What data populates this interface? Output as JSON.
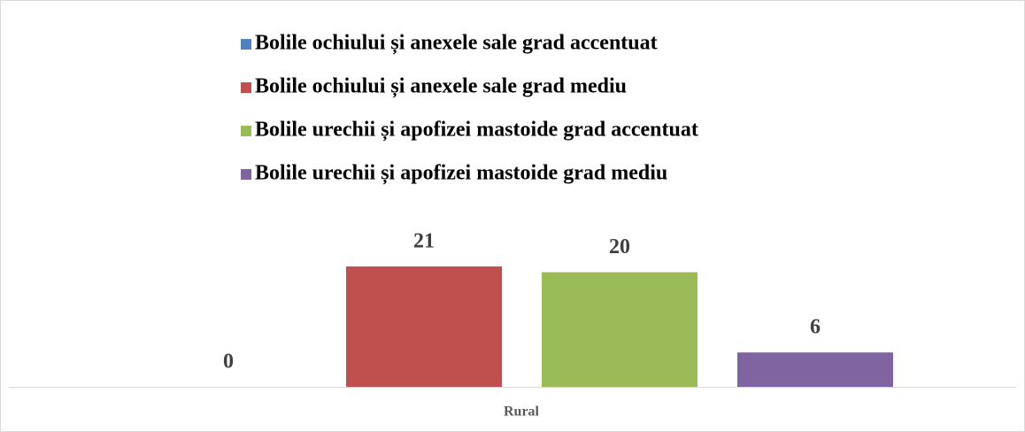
{
  "chart_data": {
    "type": "bar",
    "categories": [
      "Rural"
    ],
    "series": [
      {
        "name": "Bolile ochiului și anexele sale grad accentuat",
        "color": "#4f81bd",
        "values": [
          0
        ]
      },
      {
        "name": "Bolile ochiului și anexele sale grad mediu",
        "color": "#c0504d",
        "values": [
          21
        ]
      },
      {
        "name": "Bolile urechii și apofizei mastoide grad accentuat",
        "color": "#9bbb59",
        "values": [
          20
        ]
      },
      {
        "name": "Bolile urechii și apofizei mastoide grad mediu",
        "color": "#8064a2",
        "values": [
          6
        ]
      }
    ],
    "legend": "top"
  }
}
